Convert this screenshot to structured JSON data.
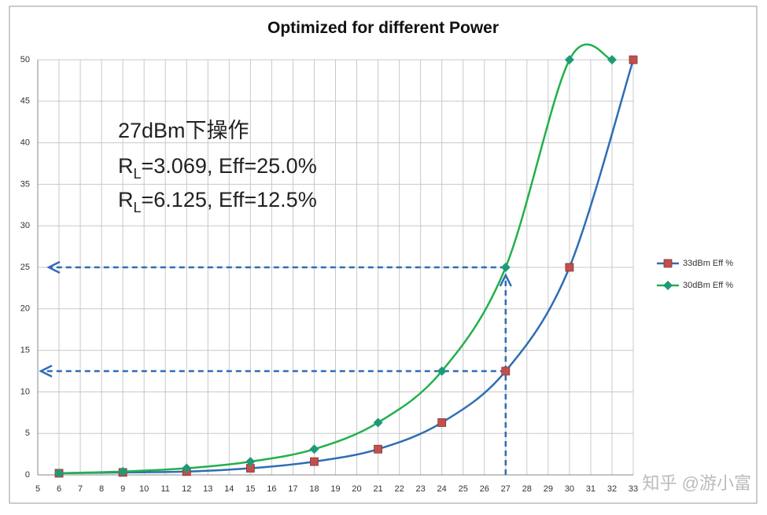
{
  "chart_data": {
    "type": "line",
    "title": "Optimized for different Power",
    "xlim": [
      5,
      33
    ],
    "ylim": [
      0,
      50
    ],
    "xticks": [
      5,
      6,
      7,
      8,
      9,
      10,
      11,
      12,
      13,
      14,
      15,
      16,
      17,
      18,
      19,
      20,
      21,
      22,
      23,
      24,
      25,
      26,
      27,
      28,
      29,
      30,
      31,
      32,
      33
    ],
    "yticks": [
      0,
      5,
      10,
      15,
      20,
      25,
      30,
      35,
      40,
      45,
      50
    ],
    "grid": true,
    "legend": "right",
    "series": [
      {
        "name": "33dBm Eff %",
        "color": "#2e6db4",
        "marker": "square",
        "marker_color": "#c0504d",
        "x": [
          6,
          9,
          12,
          15,
          18,
          21,
          24,
          27,
          30,
          33
        ],
        "values": [
          0.2,
          0.3,
          0.4,
          0.8,
          1.6,
          3.1,
          6.3,
          12.5,
          25,
          50
        ]
      },
      {
        "name": "30dBm Eff %",
        "color": "#22b04b",
        "marker": "diamond",
        "marker_color": "#1e9a78",
        "x": [
          6,
          9,
          12,
          15,
          18,
          21,
          24,
          27,
          30,
          32
        ],
        "values": [
          0.2,
          0.4,
          0.8,
          1.6,
          3.1,
          6.3,
          12.5,
          25,
          50,
          50
        ]
      }
    ],
    "annotations": [
      {
        "text": "27dBm下操作"
      },
      {
        "main": "R",
        "sub": "L",
        "rest": "=3.069, Eff=25.0%"
      },
      {
        "main": "R",
        "sub": "L",
        "rest": "=6.125, Eff=12.5%"
      }
    ],
    "watermark": "知乎 @游小富"
  }
}
